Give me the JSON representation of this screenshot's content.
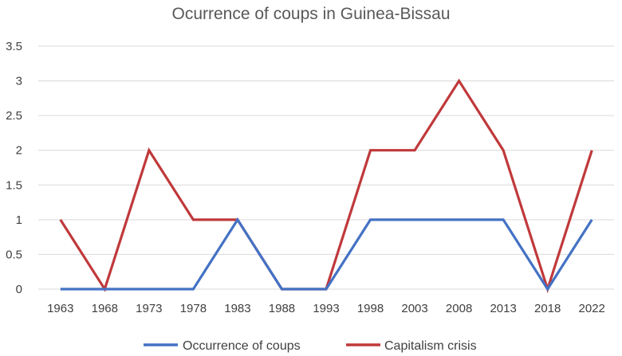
{
  "chart_data": {
    "type": "line",
    "title": "Ocurrence of coups in Guinea-Bissau",
    "xlabel": "",
    "ylabel": "",
    "categories": [
      "1963",
      "1968",
      "1973",
      "1978",
      "1983",
      "1988",
      "1993",
      "1998",
      "2003",
      "2008",
      "2013",
      "2018",
      "2022"
    ],
    "ylim": [
      0,
      3.5
    ],
    "yticks": [
      "0",
      "0.5",
      "1",
      "1.5",
      "2",
      "2.5",
      "3",
      "3.5"
    ],
    "grid": true,
    "legend_position": "bottom",
    "series": [
      {
        "name": "Occurrence of coups",
        "color": "#4472c4",
        "values": [
          0,
          0,
          0,
          0,
          1,
          0,
          0,
          1,
          1,
          1,
          1,
          0,
          1
        ]
      },
      {
        "name": "Capitalism crisis",
        "color": "#c0393b",
        "values": [
          1,
          0,
          2,
          1,
          1,
          0,
          0,
          2,
          2,
          3,
          2,
          0,
          2
        ]
      }
    ]
  }
}
